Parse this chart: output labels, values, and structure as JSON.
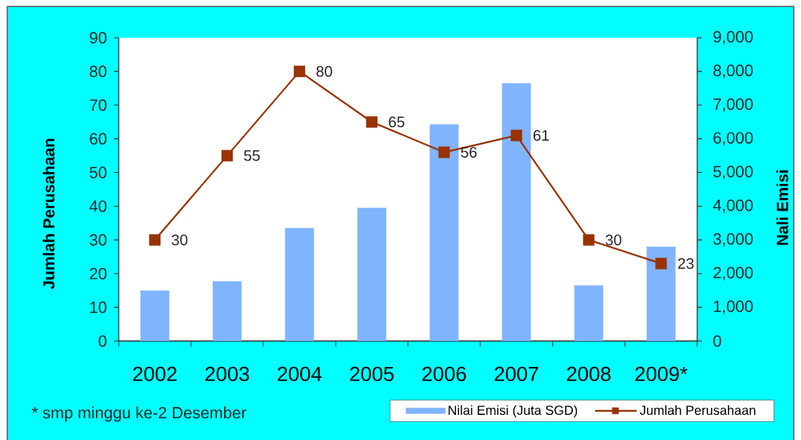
{
  "chart_data": {
    "type": "bar",
    "categories": [
      "2002",
      "2003",
      "2004",
      "2005",
      "2006",
      "2007",
      "2008",
      "2009*"
    ],
    "series": [
      {
        "name": "Nilai Emisi (Juta SGD)",
        "axis": "y2",
        "color": "#80b4ff",
        "values": [
          1500,
          1770,
          3350,
          3950,
          6430,
          7650,
          1650,
          2800
        ]
      },
      {
        "name": "Jumlah Perusahaan",
        "type": "line",
        "color": "#993300",
        "values": [
          30,
          55,
          80,
          65,
          56,
          61,
          30,
          23
        ],
        "value_labels": [
          "30",
          "55",
          "80",
          "65",
          "56",
          "61",
          "30",
          "23"
        ]
      }
    ],
    "ylabel": "Jumlah Perusahaan",
    "y2label": "Nali Emisi",
    "ylim": [
      0,
      90
    ],
    "yticks": [
      0,
      10,
      20,
      30,
      40,
      50,
      60,
      70,
      80,
      90
    ],
    "y2lim": [
      0,
      9000
    ],
    "y2ticks": [
      0,
      {
        "value": 1000,
        "label": "1,000"
      },
      {
        "value": 2000,
        "label": "2,000"
      },
      {
        "value": 3000,
        "label": "3,000"
      },
      {
        "value": 4000,
        "label": "4,000"
      },
      {
        "value": 5000,
        "label": "5,000"
      },
      {
        "value": 6000,
        "label": "6,000"
      },
      {
        "value": 7000,
        "label": "7,000"
      },
      {
        "value": 8000,
        "label": "8,000"
      },
      {
        "value": 9000,
        "label": "9,000"
      }
    ],
    "annotations": [
      "* smp minggu ke-2 Desember"
    ],
    "legend": "bottom",
    "marker": "square"
  }
}
